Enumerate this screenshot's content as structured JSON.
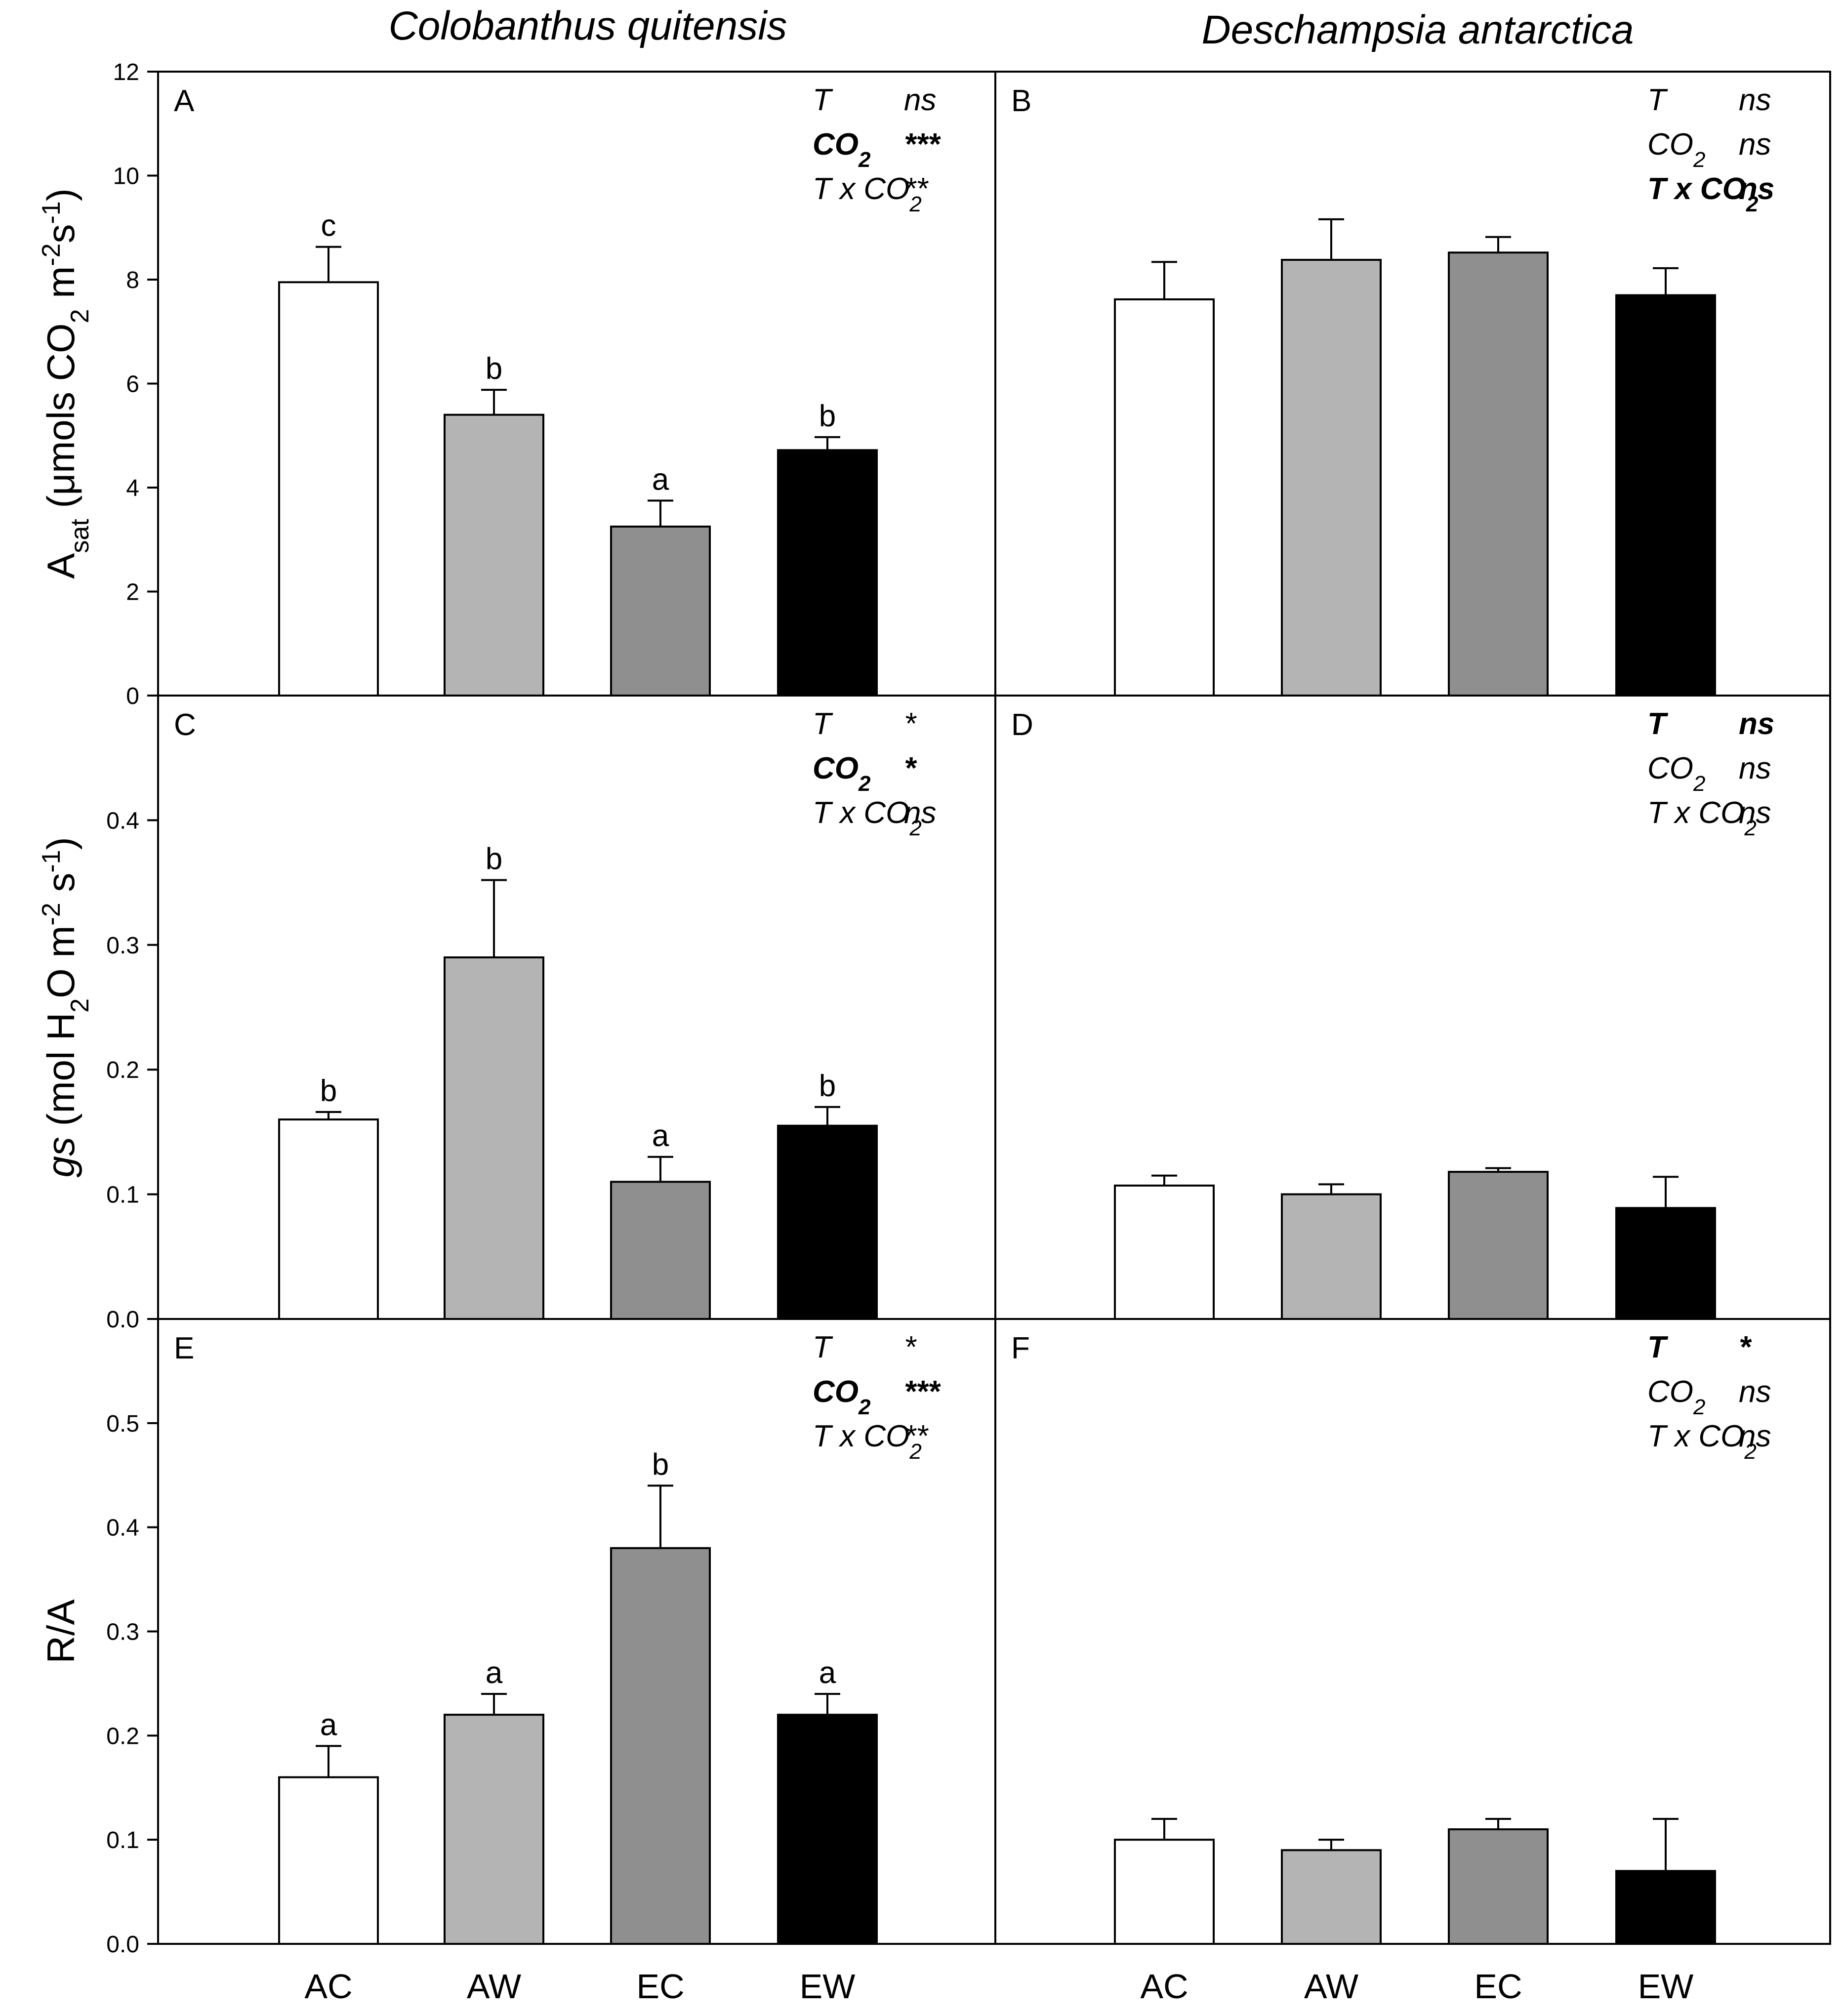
{
  "species_titles": {
    "left": "Colobanthus quitensis",
    "right": "Deschampsia antarctica"
  },
  "chart_data": [
    {
      "type": "bar",
      "panel": "A",
      "species": "Colobanthus quitensis",
      "categories": [
        "AC",
        "AW",
        "EC",
        "EW"
      ],
      "values": [
        7.95,
        5.4,
        3.25,
        4.72
      ],
      "errors": [
        0.68,
        0.48,
        0.5,
        0.25
      ],
      "significance": [
        "c",
        "b",
        "a",
        "b"
      ],
      "ylabel": {
        "main": "A",
        "sub": "sat",
        "rest": " (μmols CO",
        "sub2": "2",
        "rest2": " m",
        "sup": "-2",
        "rest3": "s",
        "sup2": "-1",
        "close": ")"
      },
      "ylim": [
        0,
        12
      ],
      "yticks": [
        "0",
        "2",
        "4",
        "6",
        "8",
        "10",
        "12"
      ],
      "stats": [
        {
          "term": "T",
          "sub": "",
          "result": "ns",
          "bold": false
        },
        {
          "term": "CO",
          "sub": "2",
          "result": "***",
          "bold": true
        },
        {
          "term": "T x CO",
          "sub": "2",
          "result": "**",
          "bold": false
        }
      ]
    },
    {
      "type": "bar",
      "panel": "B",
      "species": "Deschampsia antarctica",
      "categories": [
        "AC",
        "AW",
        "EC",
        "EW"
      ],
      "values": [
        7.62,
        8.38,
        8.52,
        7.7
      ],
      "errors": [
        0.72,
        0.78,
        0.3,
        0.52
      ],
      "significance": [
        "",
        "",
        "",
        ""
      ],
      "ylim": [
        0,
        12
      ],
      "stats": [
        {
          "term": "T",
          "sub": "",
          "result": "ns",
          "bold": false
        },
        {
          "term": "CO",
          "sub": "2",
          "result": "ns",
          "bold": false
        },
        {
          "term": "T x CO",
          "sub": "2",
          "result": "ns",
          "bold": true
        }
      ]
    },
    {
      "type": "bar",
      "panel": "C",
      "species": "Colobanthus quitensis",
      "categories": [
        "AC",
        "AW",
        "EC",
        "EW"
      ],
      "values": [
        0.16,
        0.29,
        0.11,
        0.155
      ],
      "errors": [
        0.006,
        0.062,
        0.02,
        0.015
      ],
      "significance": [
        "b",
        "b",
        "a",
        "b"
      ],
      "ylabel": {
        "main": "gs",
        "rest": " (mol H",
        "sub": "2",
        "rest2": "O m",
        "sup": "-2",
        "rest3": " s",
        "sup2": "-1",
        "close": ")"
      },
      "ylim": [
        0,
        0.5
      ],
      "yticks": [
        "0.0",
        "0.1",
        "0.2",
        "0.3",
        "0.4"
      ],
      "stats": [
        {
          "term": "T",
          "sub": "",
          "result": "*",
          "bold": false
        },
        {
          "term": "CO",
          "sub": "2",
          "result": "*",
          "bold": true
        },
        {
          "term": "T x CO",
          "sub": "2",
          "result": "ns",
          "bold": false
        }
      ]
    },
    {
      "type": "bar",
      "panel": "D",
      "species": "Deschampsia antarctica",
      "categories": [
        "AC",
        "AW",
        "EC",
        "EW"
      ],
      "values": [
        0.107,
        0.1,
        0.118,
        0.089
      ],
      "errors": [
        0.008,
        0.008,
        0.003,
        0.025
      ],
      "significance": [
        "",
        "",
        "",
        ""
      ],
      "ylim": [
        0,
        0.5
      ],
      "stats": [
        {
          "term": "T",
          "sub": "",
          "result": "ns",
          "bold": true
        },
        {
          "term": "CO",
          "sub": "2",
          "result": "ns",
          "bold": false
        },
        {
          "term": "T x CO",
          "sub": "2",
          "result": "ns",
          "bold": false
        }
      ]
    },
    {
      "type": "bar",
      "panel": "E",
      "species": "Colobanthus quitensis",
      "categories": [
        "AC",
        "AW",
        "EC",
        "EW"
      ],
      "values": [
        0.16,
        0.22,
        0.38,
        0.22
      ],
      "errors": [
        0.03,
        0.02,
        0.06,
        0.02
      ],
      "significance": [
        "a",
        "a",
        "b",
        "a"
      ],
      "ylabel": {
        "main": "R/A"
      },
      "ylim": [
        0,
        0.6
      ],
      "yticks": [
        "0.0",
        "0.1",
        "0.2",
        "0.3",
        "0.4",
        "0.5"
      ],
      "stats": [
        {
          "term": "T",
          "sub": "",
          "result": "*",
          "bold": false
        },
        {
          "term": "CO",
          "sub": "2",
          "result": "***",
          "bold": true
        },
        {
          "term": "T x CO",
          "sub": "2",
          "result": "**",
          "bold": false
        }
      ]
    },
    {
      "type": "bar",
      "panel": "F",
      "species": "Deschampsia antarctica",
      "categories": [
        "AC",
        "AW",
        "EC",
        "EW"
      ],
      "values": [
        0.1,
        0.09,
        0.11,
        0.07
      ],
      "errors": [
        0.02,
        0.01,
        0.01,
        0.05
      ],
      "significance": [
        "",
        "",
        "",
        ""
      ],
      "ylim": [
        0,
        0.6
      ],
      "stats": [
        {
          "term": "T",
          "sub": "",
          "result": "*",
          "bold": true
        },
        {
          "term": "CO",
          "sub": "2",
          "result": "ns",
          "bold": false
        },
        {
          "term": "T x CO",
          "sub": "2",
          "result": "ns",
          "bold": false
        }
      ]
    }
  ],
  "colors": {
    "AC": "#ffffff",
    "AW": "#b4b4b4",
    "EC": "#8f8f8f",
    "EW": "#000000",
    "outline": "#000000"
  }
}
